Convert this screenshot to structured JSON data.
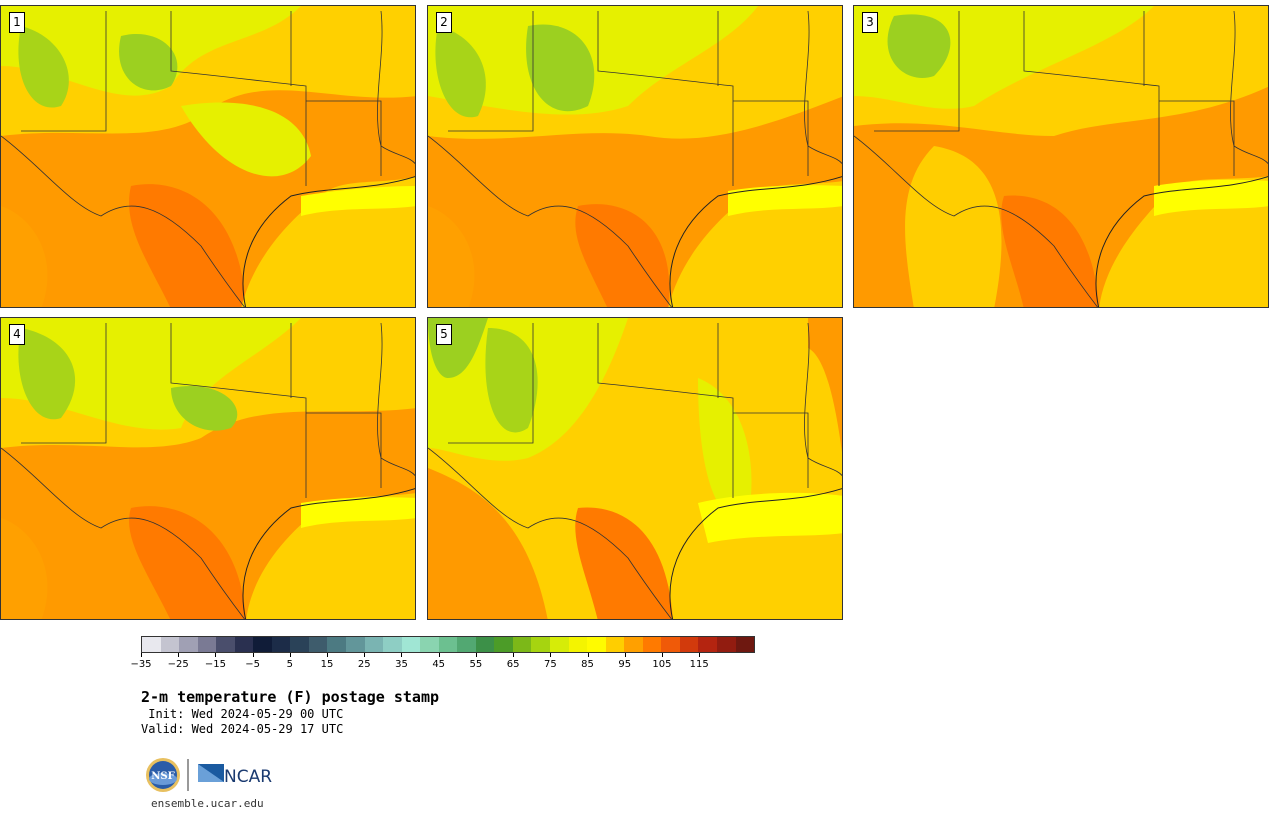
{
  "panels": [
    {
      "label": "1"
    },
    {
      "label": "2"
    },
    {
      "label": "3"
    },
    {
      "label": "4"
    },
    {
      "label": "5"
    }
  ],
  "colorbar": {
    "colors": [
      "#e8e8ee",
      "#c4c4d0",
      "#a0a0b4",
      "#7a7a94",
      "#4a4e6c",
      "#2a3050",
      "#101c38",
      "#1c2c48",
      "#2a4258",
      "#3e5c6c",
      "#4c7a82",
      "#62969a",
      "#7ab4b2",
      "#8ecec4",
      "#a0e6d4",
      "#8ad4b0",
      "#6cc090",
      "#52a872",
      "#3c9048",
      "#4c9c28",
      "#7cb818",
      "#a6d410",
      "#d6ec08",
      "#f4f400",
      "#fffb00",
      "#ffce00",
      "#ffa000",
      "#ff7a00",
      "#f05a08",
      "#d23a0c",
      "#b42410",
      "#921c10",
      "#6e1810"
    ],
    "tick_labels": [
      "−35",
      "−25",
      "−15",
      "−5",
      "5",
      "15",
      "25",
      "35",
      "45",
      "55",
      "65",
      "75",
      "85",
      "95",
      "105",
      "115"
    ]
  },
  "title": "2-m temperature (F) postage stamp",
  "init": " Init: Wed 2024-05-29 00 UTC",
  "valid": "Valid: Wed 2024-05-29 17 UTC",
  "logos": {
    "nsf": "NSF",
    "ncar": "NCAR"
  },
  "website": "ensemble.ucar.edu"
}
